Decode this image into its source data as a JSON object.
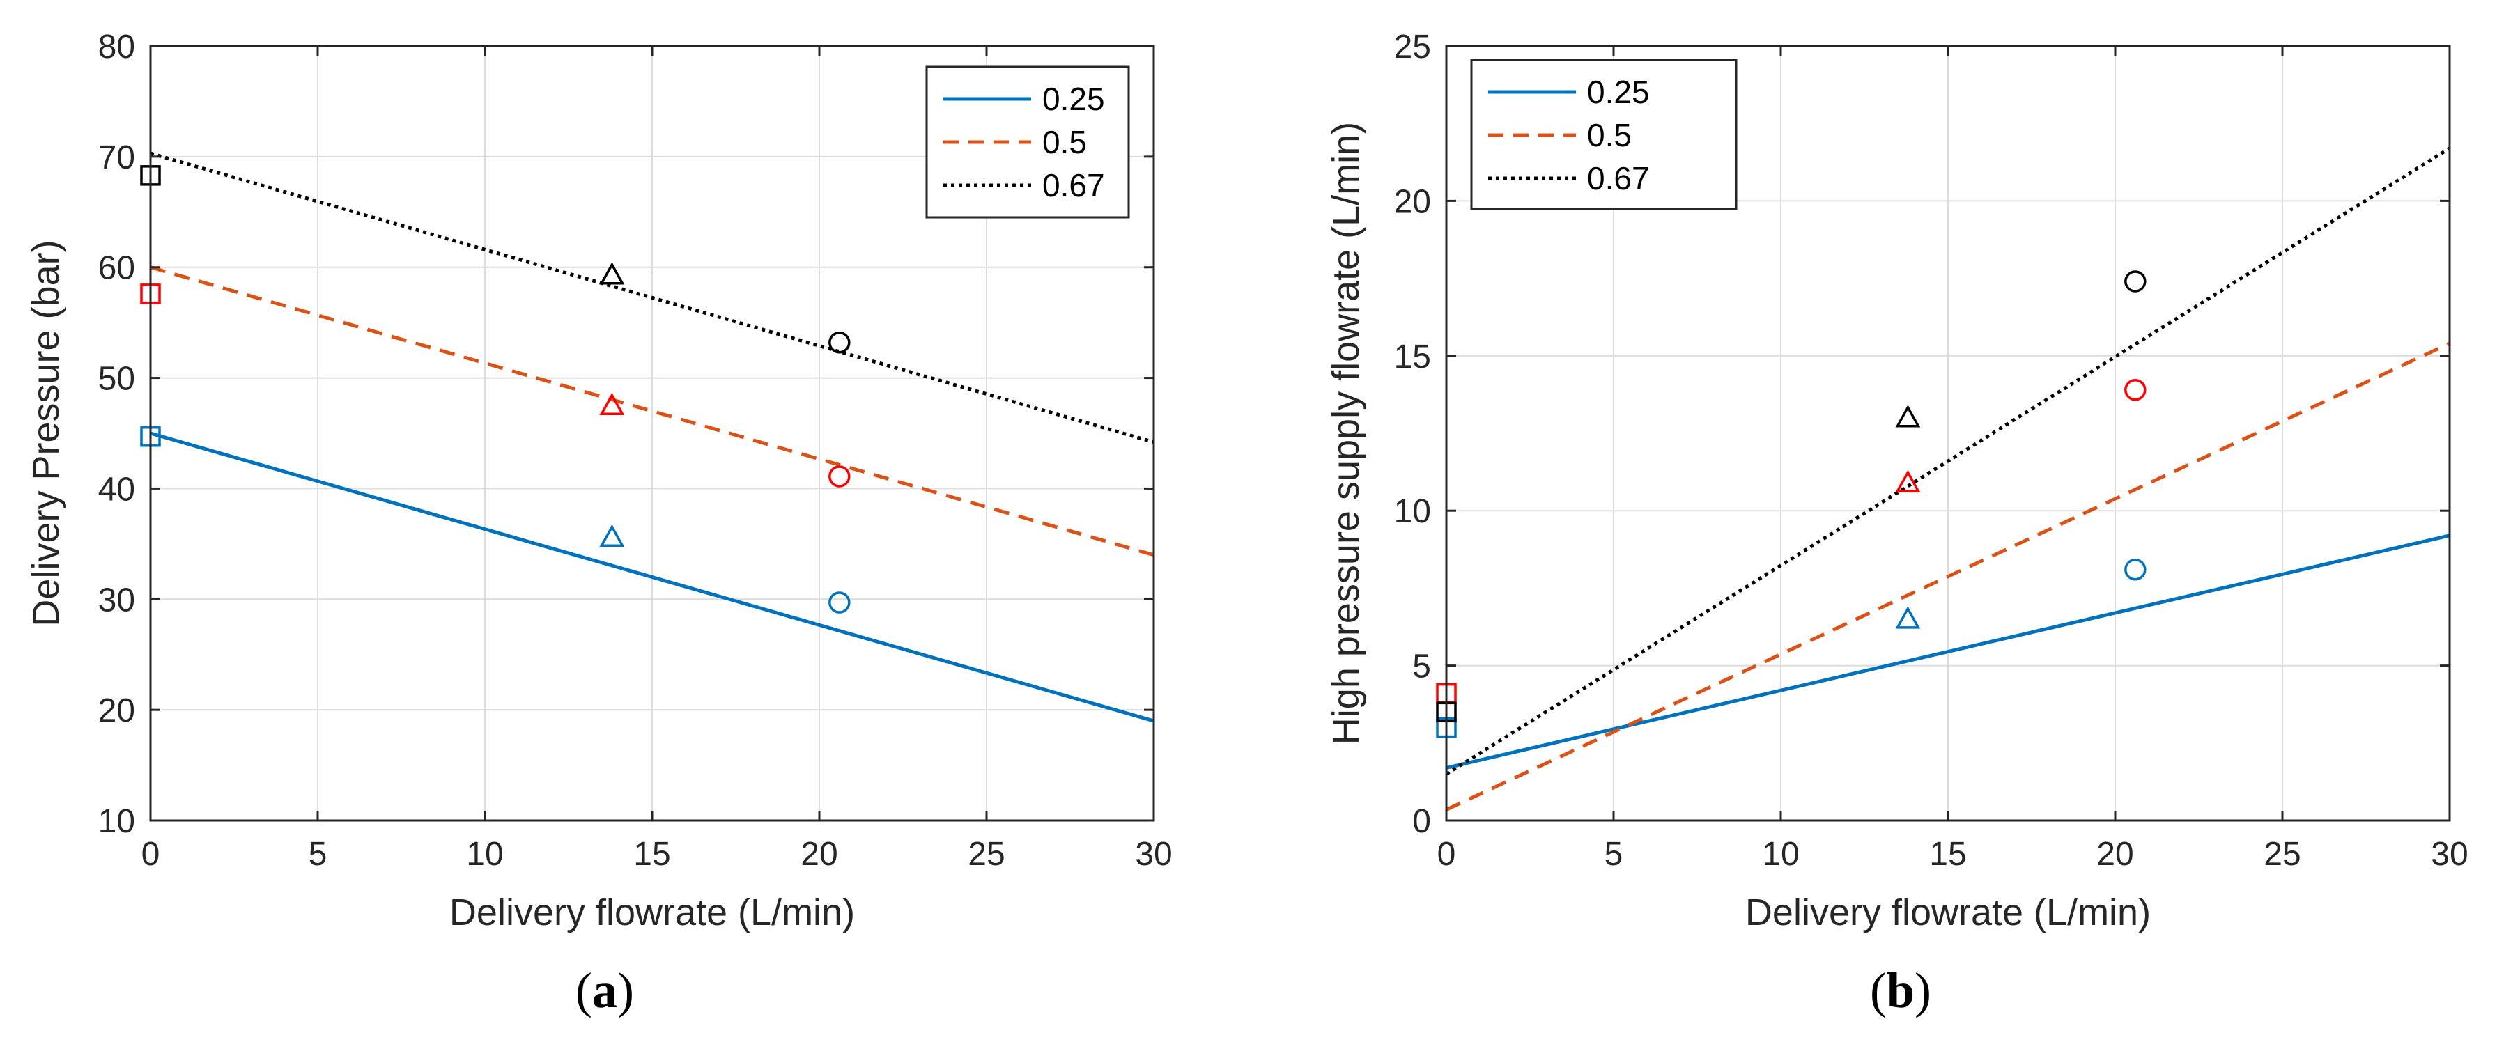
{
  "colors": {
    "c025": "#0072BD",
    "c05": "#D95319",
    "c067": "#000000",
    "marker_red": "#FF0000"
  },
  "chart_data": [
    {
      "id": "a",
      "panel_label": "a",
      "type": "line",
      "xlabel": "Delivery flowrate (L/min)",
      "ylabel": "Delivery Pressure (bar)",
      "xlim": [
        0,
        30
      ],
      "ylim": [
        10,
        80
      ],
      "xticks": [
        0,
        5,
        10,
        15,
        20,
        25,
        30
      ],
      "yticks": [
        10,
        20,
        30,
        40,
        50,
        60,
        70,
        80
      ],
      "grid": true,
      "legend_position": "top-right",
      "series": [
        {
          "name": "0.25",
          "style": "solid",
          "color": "#0072BD",
          "line": [
            [
              0,
              45
            ],
            [
              30,
              19
            ]
          ]
        },
        {
          "name": "0.5",
          "style": "dashed",
          "color": "#D95319",
          "line": [
            [
              0,
              60
            ],
            [
              30,
              34
            ]
          ]
        },
        {
          "name": "0.67",
          "style": "dotted",
          "color": "#000000",
          "line": [
            [
              0,
              70.3
            ],
            [
              30,
              44.2
            ]
          ]
        }
      ],
      "markers": [
        {
          "shape": "square",
          "color": "#0072BD",
          "x": 0,
          "y": 44.7
        },
        {
          "shape": "triangle",
          "color": "#0072BD",
          "x": 13.8,
          "y": 35.6
        },
        {
          "shape": "circle",
          "color": "#0072BD",
          "x": 20.6,
          "y": 29.7
        },
        {
          "shape": "square",
          "color": "#FF0000",
          "x": 0,
          "y": 57.6
        },
        {
          "shape": "triangle",
          "color": "#FF0000",
          "x": 13.8,
          "y": 47.5
        },
        {
          "shape": "circle",
          "color": "#FF0000",
          "x": 20.6,
          "y": 41.1
        },
        {
          "shape": "square",
          "color": "#000000",
          "x": 0,
          "y": 68.3
        },
        {
          "shape": "triangle",
          "color": "#000000",
          "x": 13.8,
          "y": 59.3
        },
        {
          "shape": "circle",
          "color": "#000000",
          "x": 20.6,
          "y": 53.2
        }
      ]
    },
    {
      "id": "b",
      "panel_label": "b",
      "type": "line",
      "xlabel": "Delivery flowrate (L/min)",
      "ylabel": "High pressure supply flowrate (L/min)",
      "xlim": [
        0,
        30
      ],
      "ylim": [
        0,
        25
      ],
      "xticks": [
        0,
        5,
        10,
        15,
        20,
        25,
        30
      ],
      "yticks": [
        0,
        5,
        10,
        15,
        20,
        25
      ],
      "grid": true,
      "legend_position": "top-left",
      "series": [
        {
          "name": "0.25",
          "style": "solid",
          "color": "#0072BD",
          "line": [
            [
              0,
              1.7
            ],
            [
              30,
              9.2
            ]
          ]
        },
        {
          "name": "0.5",
          "style": "dashed",
          "color": "#D95319",
          "line": [
            [
              0,
              0.35
            ],
            [
              30,
              15.4
            ]
          ]
        },
        {
          "name": "0.67",
          "style": "dotted",
          "color": "#000000",
          "line": [
            [
              0,
              1.5
            ],
            [
              30,
              21.7
            ]
          ]
        }
      ],
      "markers": [
        {
          "shape": "square",
          "color": "#0072BD",
          "x": 0,
          "y": 3.0
        },
        {
          "shape": "triangle",
          "color": "#0072BD",
          "x": 13.8,
          "y": 6.5
        },
        {
          "shape": "circle",
          "color": "#0072BD",
          "x": 20.6,
          "y": 8.1
        },
        {
          "shape": "square",
          "color": "#FF0000",
          "x": 0,
          "y": 4.1
        },
        {
          "shape": "triangle",
          "color": "#FF0000",
          "x": 13.8,
          "y": 10.9
        },
        {
          "shape": "circle",
          "color": "#FF0000",
          "x": 20.6,
          "y": 13.9
        },
        {
          "shape": "square",
          "color": "#000000",
          "x": 0,
          "y": 3.5
        },
        {
          "shape": "triangle",
          "color": "#000000",
          "x": 13.8,
          "y": 13.0
        },
        {
          "shape": "circle",
          "color": "#000000",
          "x": 20.6,
          "y": 17.4
        }
      ]
    }
  ]
}
